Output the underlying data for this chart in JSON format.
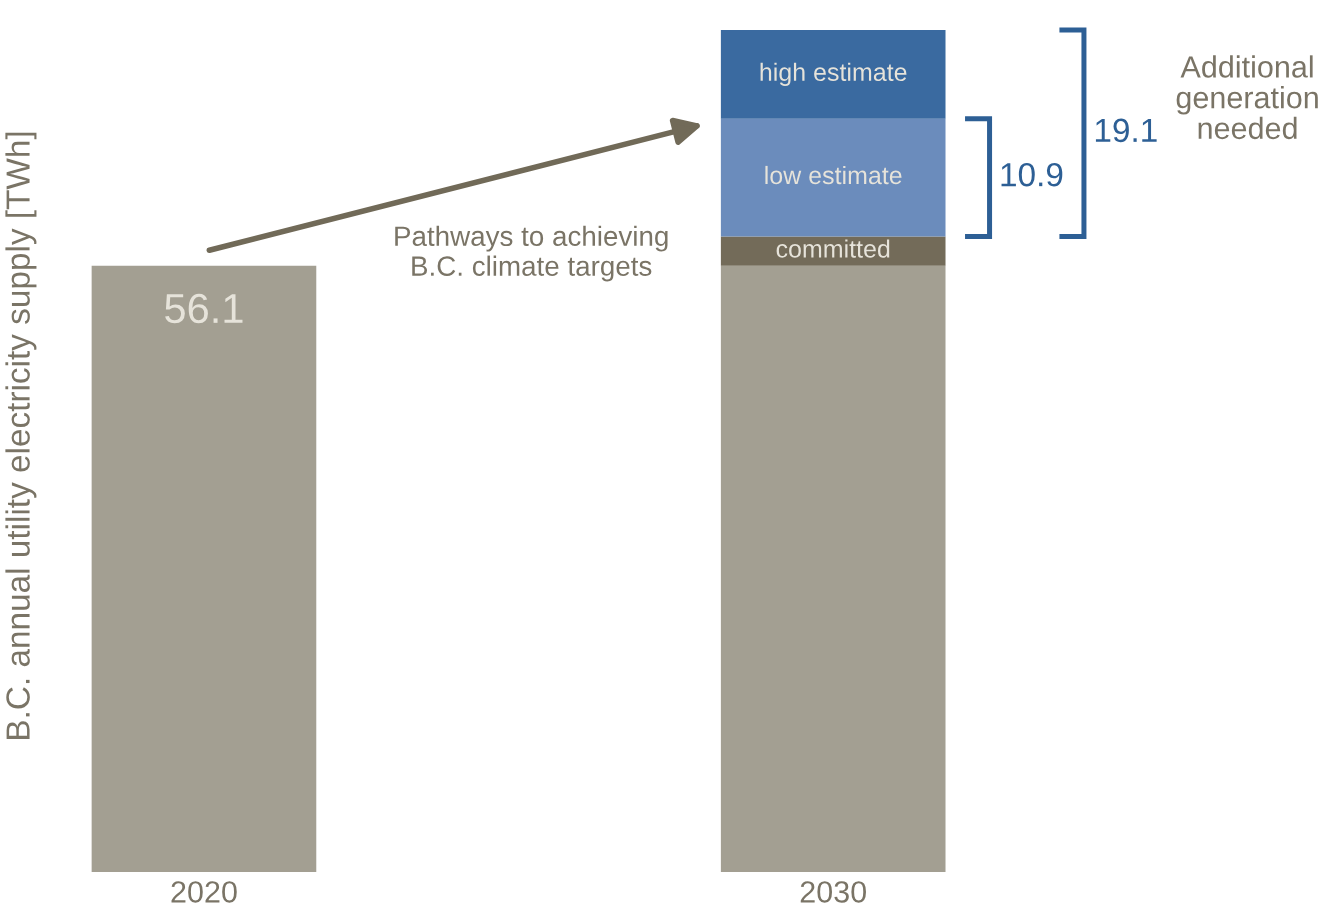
{
  "chart_data": {
    "type": "bar",
    "stacked": true,
    "ylabel": "B.C. annual utility electricity supply [TWh]",
    "categories": [
      "2020",
      "2030"
    ],
    "series": [
      {
        "color": "#a39f92",
        "values": [
          56.1,
          56.1
        ],
        "value_labels": [
          "56.1",
          null
        ]
      },
      {
        "name": "committed",
        "color": "#736b59",
        "values": [
          0,
          2.7
        ]
      },
      {
        "name": "low estimate",
        "color": "#6b8cbc",
        "values": [
          0,
          10.9
        ]
      },
      {
        "name": "high estimate",
        "color": "#3a6aa0",
        "values": [
          0,
          8.2
        ]
      }
    ],
    "annotations": [
      "Pathways to achieving\nB.C. climate targets",
      "Additional\ngeneration\nneeded",
      "10.9",
      "19.1"
    ],
    "grid": false
  }
}
